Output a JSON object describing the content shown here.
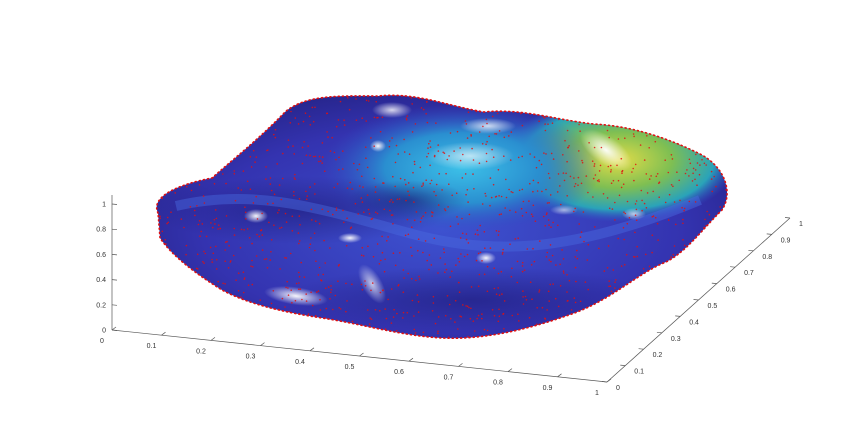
{
  "chart_data": {
    "type": "surface",
    "title": "",
    "xlabel": "",
    "ylabel": "",
    "zlabel": "",
    "x_ticks": [
      "0",
      "0.1",
      "0.2",
      "0.3",
      "0.4",
      "0.5",
      "0.6",
      "0.7",
      "0.8",
      "0.9",
      "1"
    ],
    "y_ticks": [
      "0",
      "0.1",
      "0.2",
      "0.3",
      "0.4",
      "0.5",
      "0.6",
      "0.7",
      "0.8",
      "0.9",
      "1"
    ],
    "z_ticks": [
      "0",
      "0.2",
      "0.4",
      "0.6",
      "0.8",
      "1"
    ],
    "xlim": [
      0,
      1
    ],
    "ylim": [
      0,
      1
    ],
    "zlim": [
      0,
      1
    ],
    "grid": false,
    "colormap": "jet",
    "lighting": true,
    "surface_colors": {
      "low": "#3a36b8",
      "mid": "#2ea9d6",
      "high": "#c8c23a"
    },
    "point_color": "#e01010",
    "shape": "closed blob-shaped surface with a central basin, higher rim toward the right (large x, large y), sampled points scattered over the surface"
  }
}
